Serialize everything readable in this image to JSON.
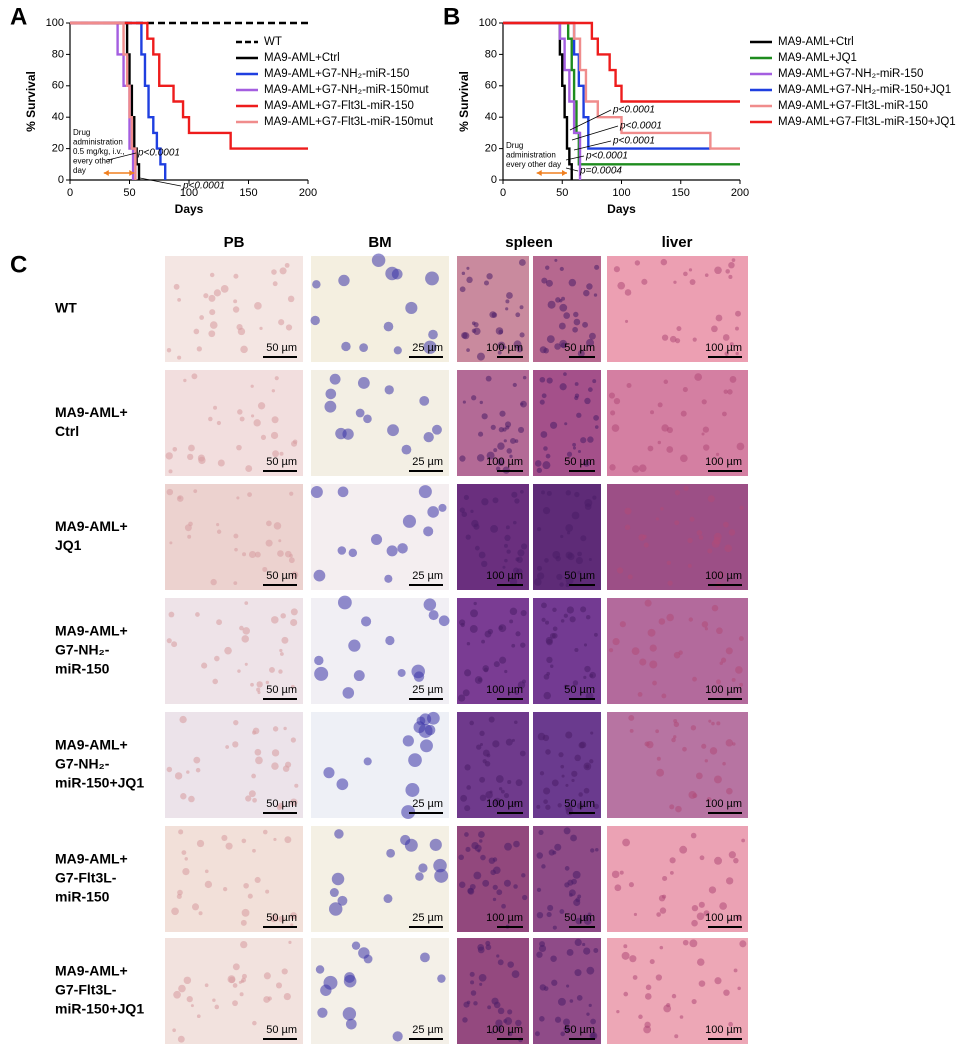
{
  "chart_data": [
    {
      "type": "step",
      "panel": "A",
      "xlabel": "Days",
      "ylabel": "% Survival",
      "xlim": [
        0,
        200
      ],
      "xticks": [
        0,
        50,
        100,
        150,
        200
      ],
      "ylim": [
        0,
        100
      ],
      "yticks": [
        0,
        20,
        40,
        60,
        80,
        100
      ],
      "series": [
        {
          "name": "WT",
          "color": "#000000",
          "linestyle": "dashed",
          "x": [
            0,
            200
          ],
          "values": [
            100,
            100
          ]
        },
        {
          "name": "MA9-AML+Ctrl",
          "color": "#000000",
          "x": [
            0,
            48,
            50,
            52,
            54,
            56,
            58
          ],
          "values": [
            100,
            80,
            60,
            40,
            20,
            10,
            0
          ]
        },
        {
          "name": "MA9-AML+G7-NH₂-miR-150",
          "color": "#1f3fe0",
          "x": [
            0,
            60,
            63,
            66,
            70,
            73,
            76,
            80
          ],
          "values": [
            100,
            80,
            60,
            40,
            30,
            20,
            10,
            0
          ]
        },
        {
          "name": "MA9-AML+G7-NH₂-miR-150mut",
          "color": "#a45ee0",
          "x": [
            0,
            40,
            45,
            50,
            53
          ],
          "values": [
            100,
            80,
            60,
            20,
            0
          ]
        },
        {
          "name": "MA9-AML+G7-Flt3L-miR-150",
          "color": "#ee1c1c",
          "x": [
            0,
            65,
            70,
            75,
            87,
            95,
            100,
            110,
            135,
            200
          ],
          "values": [
            100,
            90,
            80,
            60,
            50,
            40,
            30,
            30,
            20,
            20
          ]
        },
        {
          "name": "MA9-AML+G7-Flt3L-miR-150mut",
          "color": "#f08c8c",
          "x": [
            0,
            45,
            48,
            50,
            52,
            55
          ],
          "values": [
            100,
            80,
            60,
            40,
            20,
            0
          ]
        }
      ],
      "annotations": [
        "p<0.0001",
        "p<0.0001"
      ],
      "drug_note": [
        "Drug",
        "administration",
        "0.5 mg/kg, i.v.,",
        "every other",
        "day"
      ]
    },
    {
      "type": "step",
      "panel": "B",
      "xlabel": "Days",
      "ylabel": "% Survival",
      "xlim": [
        0,
        200
      ],
      "xticks": [
        0,
        50,
        100,
        150,
        200
      ],
      "ylim": [
        0,
        100
      ],
      "yticks": [
        0,
        20,
        40,
        60,
        80,
        100
      ],
      "series": [
        {
          "name": "MA9-AML+Ctrl",
          "color": "#000000",
          "x": [
            0,
            48,
            50,
            52,
            54,
            56,
            58
          ],
          "values": [
            100,
            80,
            60,
            40,
            20,
            10,
            0
          ]
        },
        {
          "name": "MA9-AML+JQ1",
          "color": "#1e8c1e",
          "x": [
            0,
            55,
            58,
            60,
            62,
            64,
            200
          ],
          "values": [
            100,
            90,
            70,
            50,
            30,
            10,
            10
          ]
        },
        {
          "name": "MA9-AML+G7-NH₂-miR-150",
          "color": "#a45ee0",
          "x": [
            0,
            48,
            52,
            56,
            60,
            65
          ],
          "values": [
            100,
            90,
            70,
            50,
            30,
            0
          ]
        },
        {
          "name": "MA9-AML+G7-NH₂-miR-150+JQ1",
          "color": "#1f3fe0",
          "x": [
            0,
            60,
            64,
            68,
            72,
            175
          ],
          "values": [
            100,
            80,
            60,
            40,
            20,
            20
          ]
        },
        {
          "name": "MA9-AML+G7-Flt3L-miR-150",
          "color": "#f08c8c",
          "x": [
            0,
            60,
            65,
            70,
            80,
            100,
            175,
            200
          ],
          "values": [
            100,
            90,
            70,
            50,
            40,
            30,
            20,
            20
          ]
        },
        {
          "name": "MA9-AML+G7-Flt3L-miR-150+JQ1",
          "color": "#ee1c1c",
          "x": [
            0,
            75,
            80,
            90,
            95,
            100,
            200
          ],
          "values": [
            100,
            90,
            80,
            70,
            60,
            50,
            50
          ]
        }
      ],
      "annotations": [
        "p<0.0001",
        "p<0.0001",
        "p<0.0001",
        "p<0.0001",
        "p=0.0004"
      ],
      "drug_note": [
        "Drug",
        "administration",
        "every other day"
      ]
    }
  ],
  "histology": {
    "panel": "C",
    "columns": [
      "PB",
      "BM",
      "spleen",
      "liver"
    ],
    "scale_bars": [
      "50 µm",
      "25 µm",
      "100 µm",
      "50 µm",
      "100 µm"
    ],
    "rows": [
      [
        "WT"
      ],
      [
        "MA9-AML+",
        "Ctrl"
      ],
      [
        "MA9-AML+",
        "JQ1"
      ],
      [
        "MA9-AML+",
        "G7-NH₂-",
        "miR-150"
      ],
      [
        "MA9-AML+",
        "G7-NH₂-",
        "miR-150+JQ1"
      ],
      [
        "MA9-AML+",
        "G7-Flt3L-",
        "miR-150"
      ],
      [
        "MA9-AML+",
        "G7-Flt3L-",
        "miR-150+JQ1"
      ]
    ]
  }
}
